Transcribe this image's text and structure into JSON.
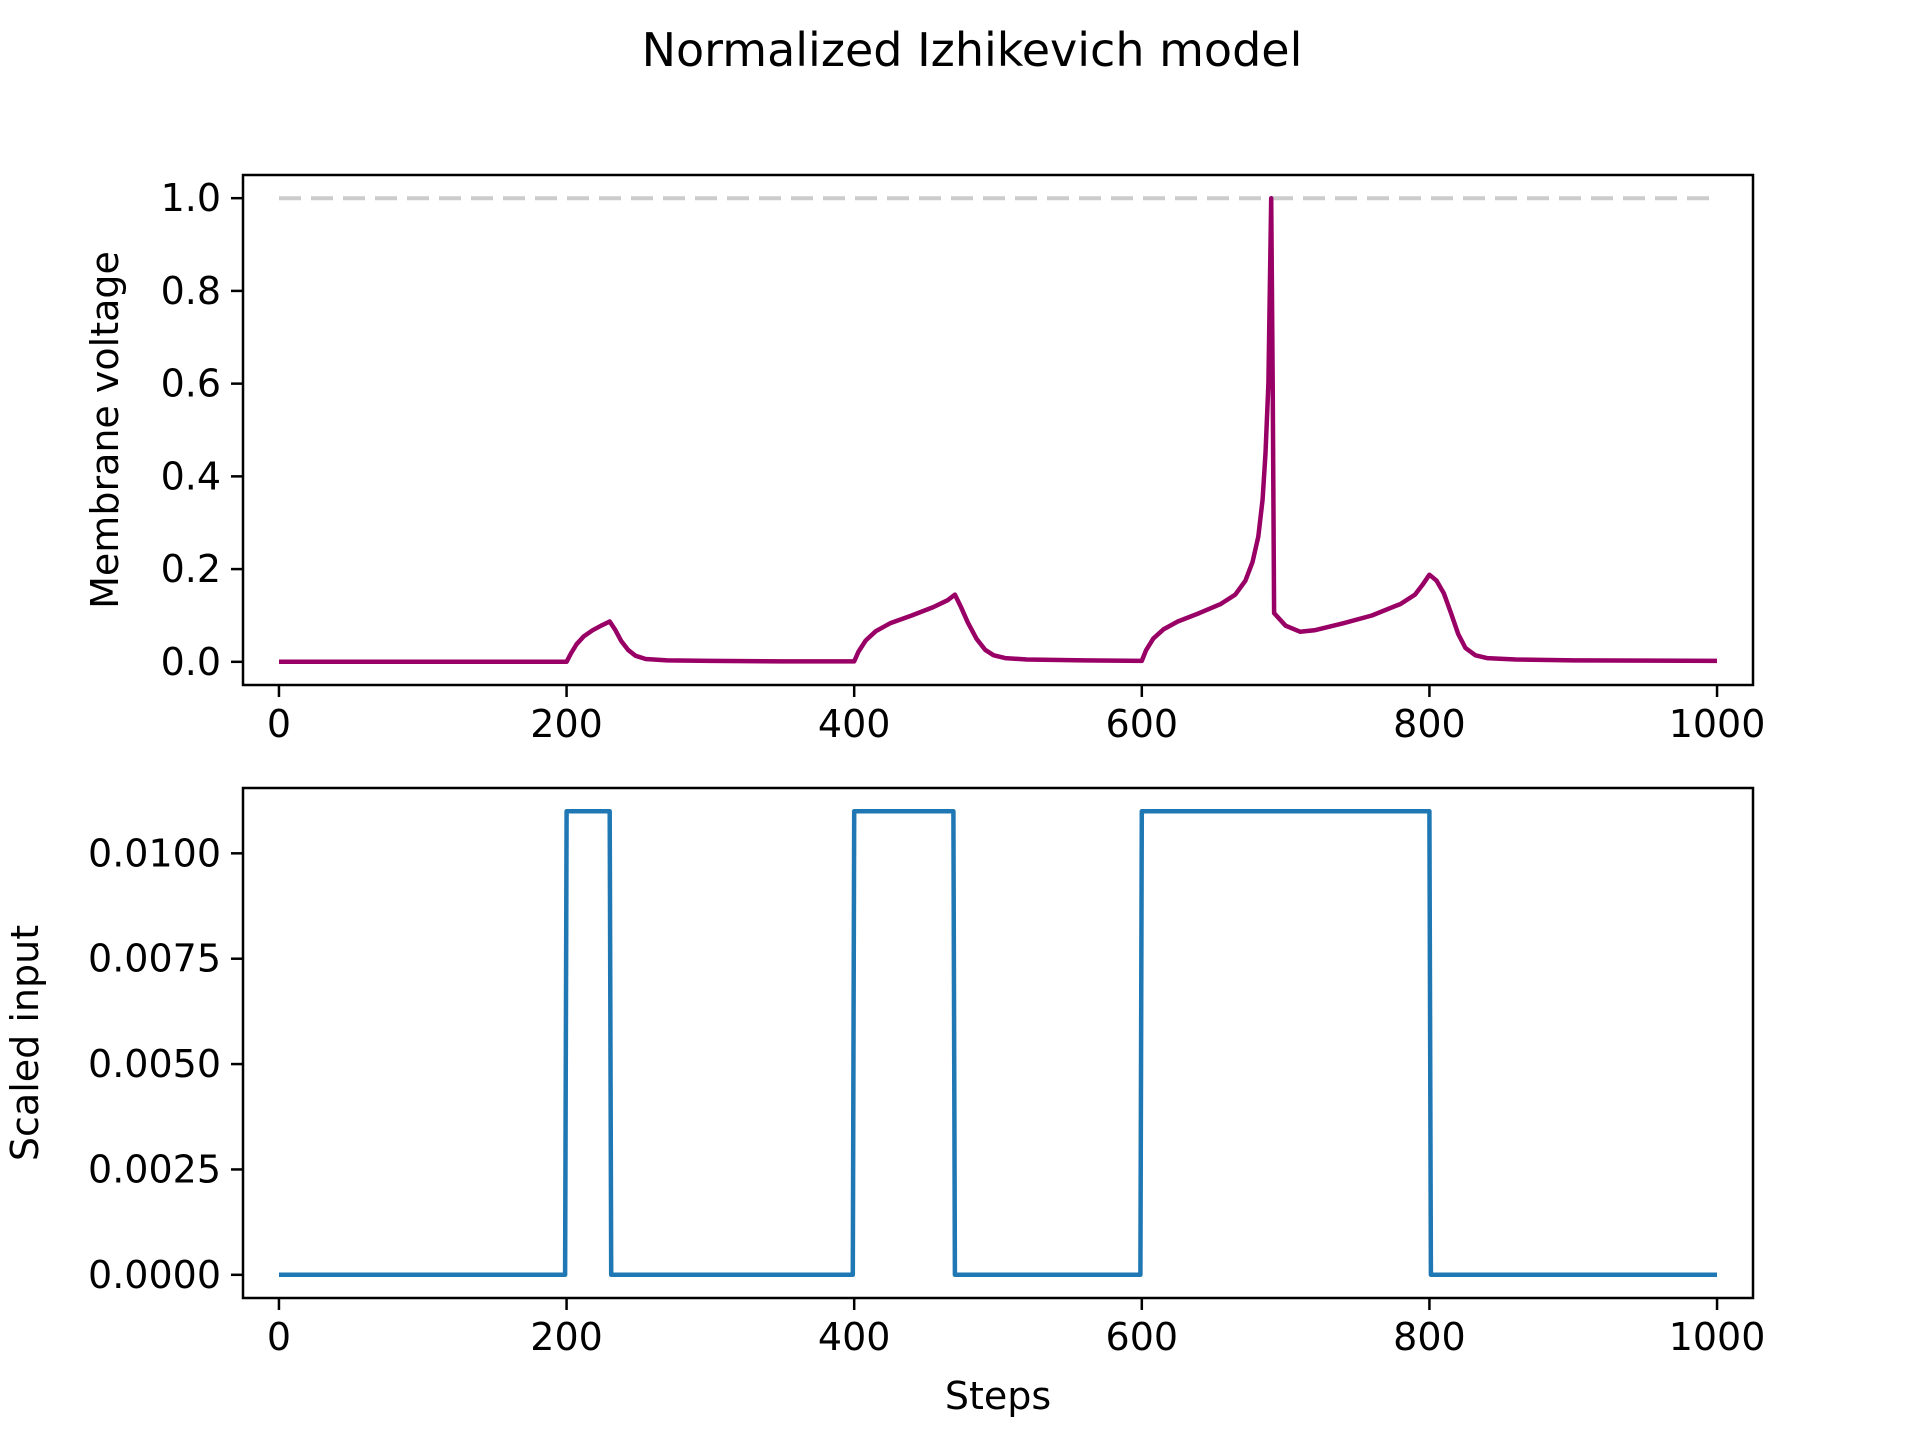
{
  "figure": {
    "title": "Normalized Izhikevich model"
  },
  "chart_data": [
    {
      "type": "line",
      "xlabel": "",
      "ylabel": "Membrane voltage",
      "xlim": [
        -25,
        1025
      ],
      "ylim": [
        -0.05,
        1.05
      ],
      "xticks": [
        0,
        200,
        400,
        600,
        800,
        1000
      ],
      "xtick_labels": [
        "0",
        "200",
        "400",
        "600",
        "800",
        "1000"
      ],
      "yticks": [
        0.0,
        0.2,
        0.4,
        0.6,
        0.8,
        1.0
      ],
      "ytick_labels": [
        "0.0",
        "0.2",
        "0.4",
        "0.6",
        "0.8",
        "1.0"
      ],
      "grid": false,
      "series": [
        {
          "color": "#990066",
          "style": "solid",
          "x": [
            0,
            200,
            203,
            207,
            212,
            218,
            224,
            230,
            234,
            238,
            243,
            248,
            255,
            270,
            300,
            350,
            400,
            403,
            408,
            415,
            425,
            440,
            455,
            465,
            470,
            474,
            479,
            485,
            491,
            497,
            505,
            520,
            560,
            600,
            603,
            608,
            615,
            625,
            640,
            655,
            665,
            672,
            677,
            681,
            684,
            686,
            688,
            689,
            690,
            691,
            692,
            700,
            710,
            720,
            740,
            760,
            780,
            790,
            795,
            800,
            805,
            810,
            815,
            820,
            825,
            832,
            840,
            860,
            900,
            1000
          ],
          "y": [
            0.0,
            0.0,
            0.018,
            0.038,
            0.055,
            0.068,
            0.078,
            0.087,
            0.068,
            0.045,
            0.025,
            0.013,
            0.006,
            0.003,
            0.002,
            0.001,
            0.001,
            0.022,
            0.046,
            0.066,
            0.083,
            0.1,
            0.118,
            0.133,
            0.145,
            0.12,
            0.085,
            0.05,
            0.026,
            0.014,
            0.008,
            0.005,
            0.003,
            0.002,
            0.025,
            0.05,
            0.07,
            0.087,
            0.105,
            0.125,
            0.145,
            0.175,
            0.215,
            0.27,
            0.35,
            0.45,
            0.6,
            0.8,
            1.0,
            0.6,
            0.105,
            0.078,
            0.065,
            0.068,
            0.083,
            0.1,
            0.125,
            0.145,
            0.165,
            0.188,
            0.175,
            0.148,
            0.105,
            0.06,
            0.03,
            0.014,
            0.008,
            0.005,
            0.003,
            0.002
          ]
        },
        {
          "color": "#cccccc",
          "style": "dashed",
          "x": [
            0,
            1000
          ],
          "y": [
            1.0,
            1.0
          ]
        }
      ]
    },
    {
      "type": "line",
      "xlabel": "Steps",
      "ylabel": "Scaled input",
      "xlim": [
        -25,
        1025
      ],
      "ylim": [
        -0.00055,
        0.01155
      ],
      "xticks": [
        0,
        200,
        400,
        600,
        800,
        1000
      ],
      "xtick_labels": [
        "0",
        "200",
        "400",
        "600",
        "800",
        "1000"
      ],
      "yticks": [
        0.0,
        0.0025,
        0.005,
        0.0075,
        0.01
      ],
      "ytick_labels": [
        "0.0000",
        "0.0025",
        "0.0050",
        "0.0075",
        "0.0100"
      ],
      "grid": false,
      "series": [
        {
          "color": "#1f77b4",
          "style": "solid",
          "x": [
            0,
            199,
            200,
            230,
            231,
            399,
            400,
            469,
            470,
            599,
            600,
            800,
            801,
            1000
          ],
          "y": [
            0,
            0,
            0.011,
            0.011,
            0,
            0,
            0.011,
            0.011,
            0,
            0,
            0.011,
            0.011,
            0,
            0
          ]
        }
      ]
    }
  ]
}
